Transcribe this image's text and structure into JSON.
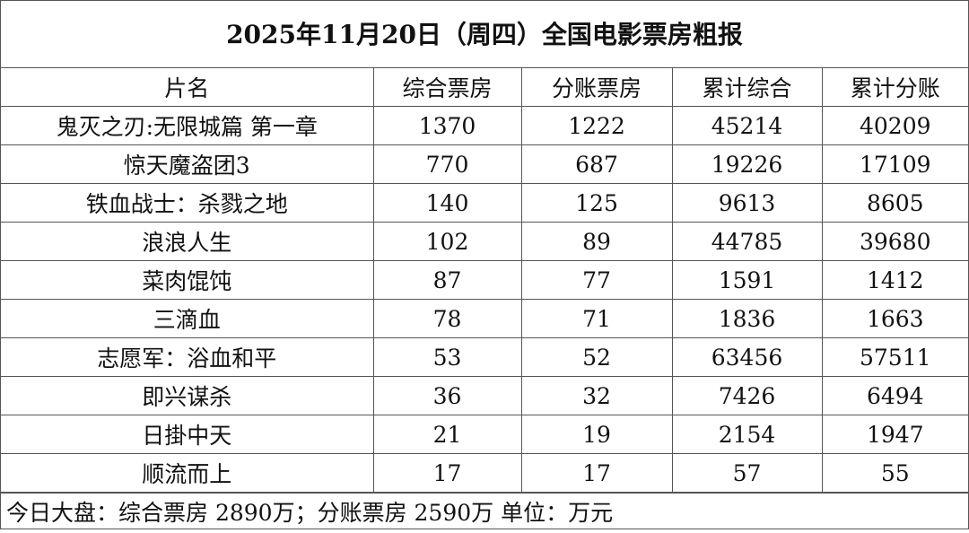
{
  "header": {
    "title": "2025年11月20日（周四）全国电影票房粗报"
  },
  "table": {
    "columns": [
      "片名",
      "综合票房",
      "分账票房",
      "累计综合",
      "累计分账"
    ],
    "rows": [
      [
        "鬼灭之刃:无限城篇 第一章",
        1370,
        1222,
        45214,
        40209
      ],
      [
        "惊天魔盗团3",
        770,
        687,
        19226,
        17109
      ],
      [
        "铁血战士：杀戮之地",
        140,
        125,
        9613,
        8605
      ],
      [
        "浪浪人生",
        102,
        89,
        44785,
        39680
      ],
      [
        "菜肉馄饨",
        87,
        77,
        1591,
        1412
      ],
      [
        "三滴血",
        78,
        71,
        1836,
        1663
      ],
      [
        "志愿军：浴血和平",
        53,
        52,
        63456,
        57511
      ],
      [
        "即兴谋杀",
        36,
        32,
        7426,
        6494
      ],
      [
        "日掛中天",
        21,
        19,
        2154,
        1947
      ],
      [
        "顺流而上",
        17,
        17,
        57,
        55
      ]
    ]
  },
  "footer": {
    "note": "今日大盘：综合票房 2890万；分账票房 2590万 单位：万元"
  }
}
